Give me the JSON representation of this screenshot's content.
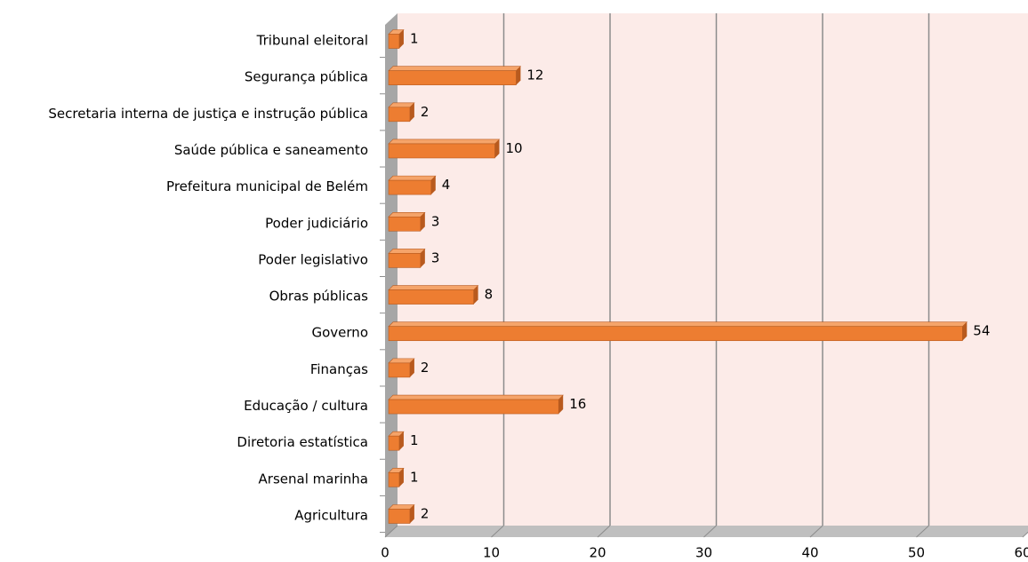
{
  "chart_data": {
    "type": "bar",
    "orientation": "horizontal",
    "categories": [
      "Agricultura",
      "Arsenal marinha",
      "Diretoria estatística",
      "Educação / cultura",
      "Finanças",
      "Governo",
      "Obras públicas",
      "Poder legislativo",
      "Poder judiciário",
      "Prefeitura municipal de Belém",
      "Saúde pública e saneamento",
      "Secretaria interna de justiça e instrução pública",
      "Segurança pública",
      "Tribunal eleitoral"
    ],
    "values": [
      2,
      1,
      1,
      16,
      2,
      54,
      8,
      3,
      3,
      4,
      10,
      2,
      12,
      1
    ],
    "color": "#ed7d31",
    "xlim": [
      0,
      60
    ],
    "xticks": [
      0,
      10,
      20,
      30,
      40,
      50,
      60
    ],
    "grid": true
  }
}
